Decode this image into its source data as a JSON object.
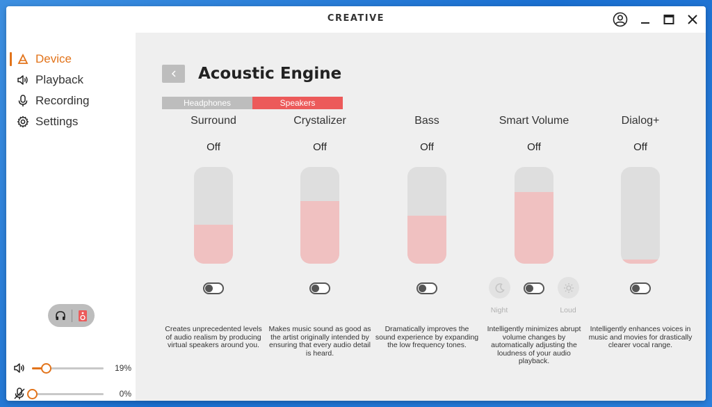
{
  "app": {
    "brand": "CREATIVE"
  },
  "sidebar": {
    "items": [
      {
        "label": "Device",
        "icon": "device-icon",
        "active": true
      },
      {
        "label": "Playback",
        "icon": "speaker-icon",
        "active": false
      },
      {
        "label": "Recording",
        "icon": "microphone-icon",
        "active": false
      },
      {
        "label": "Settings",
        "icon": "gear-icon",
        "active": false
      }
    ],
    "output_toggle": {
      "left_icon": "headphones-icon",
      "right_icon": "speaker-box-icon",
      "selected": "speakers"
    },
    "volume": {
      "icon": "speaker-volume-icon",
      "value": 19,
      "label": "19%"
    },
    "mic": {
      "icon": "mic-muted-icon",
      "value": 0,
      "label": "0%"
    }
  },
  "main": {
    "title": "Acoustic Engine",
    "tabs": [
      {
        "label": "Headphones",
        "selected": false
      },
      {
        "label": "Speakers",
        "selected": true
      }
    ],
    "features": [
      {
        "name": "Surround",
        "state": "Off",
        "level": 0.4,
        "enabled": false,
        "description": "Creates unprecedented levels of audio realism by producing virtual speakers around you."
      },
      {
        "name": "Crystalizer",
        "state": "Off",
        "level": 0.65,
        "enabled": false,
        "description": "Makes music sound as good as the artist originally intended by ensuring that every audio detail is heard."
      },
      {
        "name": "Bass",
        "state": "Off",
        "level": 0.5,
        "enabled": false,
        "description": "Dramatically improves the sound experience by expanding the low frequency tones."
      },
      {
        "name": "Smart Volume",
        "state": "Off",
        "level": 0.74,
        "enabled": false,
        "description": "Intelligently minimizes abrupt volume changes by automatically adjusting the loudness of your audio playback.",
        "modes": [
          {
            "label": "Night",
            "icon": "moon-icon"
          },
          {
            "label": "Loud",
            "icon": "sun-icon"
          }
        ]
      },
      {
        "name": "Dialog+",
        "state": "Off",
        "level": 0.04,
        "enabled": false,
        "description": "Intelligently enhances voices in music and movies for drastically clearer vocal range."
      }
    ]
  },
  "colors": {
    "accent": "#e2731a",
    "speakers_tab": "#ec5a5a",
    "slider_level": "#f0c1c1",
    "slider_track": "#dedede"
  }
}
